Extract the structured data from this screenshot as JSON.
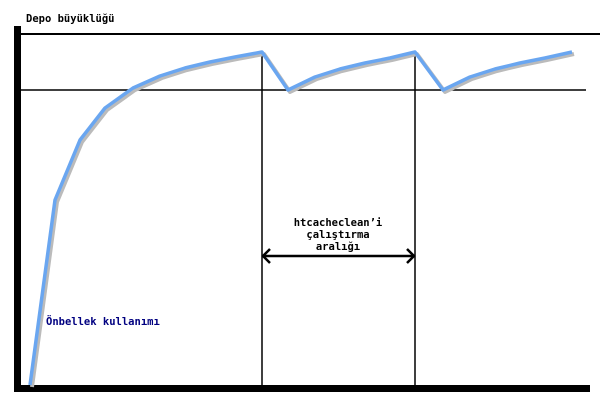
{
  "y_axis_label": "Depo büyüklüğü",
  "curve_label": "Önbellek kullanımı",
  "interval_label": [
    "htcacheclean’i",
    "çalıştırma",
    "aralığı"
  ],
  "colors": {
    "curve": "#6aa6f0",
    "axes": "#000000",
    "curve_label": "#000080"
  }
}
